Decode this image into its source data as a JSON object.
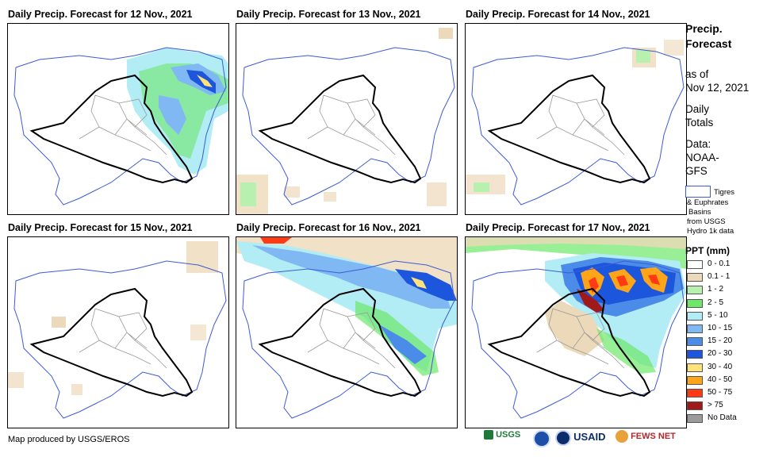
{
  "panels": [
    {
      "title": "Daily Precip. Forecast for 12 Nov., 2021"
    },
    {
      "title": "Daily Precip. Forecast for 13 Nov., 2021"
    },
    {
      "title": "Daily Precip. Forecast for 14 Nov., 2021"
    },
    {
      "title": "Daily Precip. Forecast for 15 Nov., 2021"
    },
    {
      "title": "Daily Precip. Forecast for 16 Nov., 2021"
    },
    {
      "title": "Daily Precip. Forecast for 17 Nov., 2021"
    }
  ],
  "sidebar": {
    "title_line1": "Precip.",
    "title_line2": "Forecast",
    "asof_line1": "as of",
    "asof_line2": "Nov 12, 2021",
    "daily_line1": "Daily",
    "daily_line2": "Totals",
    "data_line1": "Data:",
    "data_line2": "NOAA-",
    "data_line3": "GFS",
    "basin_line1": "Tigres",
    "basin_line2": "& Euphrates",
    "basin_line3": "Basins",
    "basin_line4": "from USGS",
    "basin_line5": "Hydro 1k data"
  },
  "legend": {
    "title": "PPT (mm)",
    "items": [
      {
        "label": "0 - 0.1",
        "color": "#ffffff"
      },
      {
        "label": "0.1 - 1",
        "color": "#ecd9b9"
      },
      {
        "label": "1 - 2",
        "color": "#b8f0b0"
      },
      {
        "label": "2 - 5",
        "color": "#6ee86a"
      },
      {
        "label": "5 - 10",
        "color": "#b2ecf5"
      },
      {
        "label": "10 - 15",
        "color": "#7fb8f2"
      },
      {
        "label": "15 - 20",
        "color": "#4a8ce8"
      },
      {
        "label": "20 - 30",
        "color": "#1c56dc"
      },
      {
        "label": "30 - 40",
        "color": "#ffe27a"
      },
      {
        "label": "40 - 50",
        "color": "#ffa51a"
      },
      {
        "label": "50 - 75",
        "color": "#ff3a14"
      },
      {
        "label": "> 75",
        "color": "#a01a1a"
      },
      {
        "label": "No Data",
        "color": "#9b9b9b"
      }
    ]
  },
  "footer": {
    "credit": "Map produced by USGS/EROS",
    "logo_usgs": "USGS",
    "logo_usaid": "USAID",
    "logo_fews": "FEWS NET"
  }
}
